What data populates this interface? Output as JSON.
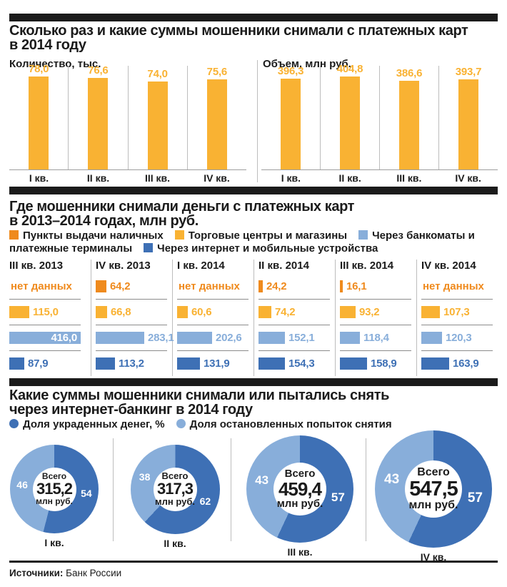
{
  "colors": {
    "yellow": "#F9B233",
    "orange": "#EF8A1D",
    "light_blue": "#88AEDA",
    "dark_blue": "#3E70B5",
    "bar_black": "#1b1b1b"
  },
  "sections": {
    "s1": {
      "title_lines": [
        "Сколько раз и какие суммы мошенники снимали с платежных карт",
        "в 2014 году"
      ]
    },
    "s2": {
      "title_lines": [
        "Где мошенники снимали деньги с платежных карт",
        "в 2013–2014 годах, млн руб."
      ]
    },
    "s3": {
      "title_lines": [
        "Какие суммы мошенники снимали или пытались снять",
        "через интернет-банкинг в 2014 году"
      ]
    }
  },
  "footer": {
    "label": "Источники:",
    "source": "Банк России"
  },
  "chart_data": [
    {
      "type": "bar",
      "title": "Количество, тыс.",
      "categories": [
        "I кв.",
        "II кв.",
        "III кв.",
        "IV кв."
      ],
      "values": [
        78.0,
        76.6,
        74.0,
        75.6
      ],
      "value_labels": [
        "78,0",
        "76,6",
        "74,0",
        "75,6"
      ],
      "bar_color": "#F9B233",
      "ylim": [
        0,
        78
      ]
    },
    {
      "type": "bar",
      "title": "Объем, млн руб.",
      "categories": [
        "I кв.",
        "II кв.",
        "III кв.",
        "IV кв."
      ],
      "values": [
        396.3,
        404.8,
        386.6,
        393.7
      ],
      "value_labels": [
        "396,3",
        "404,8",
        "386,6",
        "393,7"
      ],
      "bar_color": "#F9B233",
      "ylim": [
        0,
        404.8
      ]
    },
    {
      "type": "bar",
      "orientation": "horizontal",
      "title": "Где мошенники снимали деньги с платежных карт в 2013–2014 годах, млн руб.",
      "no_data_label": "нет данных",
      "categories": [
        "III кв. 2013",
        "IV кв. 2013",
        "I кв. 2014",
        "II кв. 2014",
        "III кв. 2014",
        "IV кв. 2014"
      ],
      "xlim": [
        0,
        416
      ],
      "series": [
        {
          "name": "Пункты выдачи наличных",
          "color": "#EF8A1D",
          "values": [
            null,
            64.2,
            null,
            24.2,
            16.1,
            null
          ],
          "value_labels": [
            null,
            "64,2",
            null,
            "24,2",
            "16,1",
            null
          ]
        },
        {
          "name": "Торговые центры и магазины",
          "color": "#F9B233",
          "values": [
            115.0,
            66.8,
            60.6,
            74.2,
            93.2,
            107.3
          ],
          "value_labels": [
            "115,0",
            "66,8",
            "60,6",
            "74,2",
            "93,2",
            "107,3"
          ]
        },
        {
          "name": "Через банкоматы и платежные терминалы",
          "color": "#88AEDA",
          "values": [
            416.0,
            283.1,
            202.6,
            152.1,
            118.4,
            120.3
          ],
          "value_labels": [
            "416,0",
            "283,1",
            "202,6",
            "152,1",
            "118,4",
            "120,3"
          ]
        },
        {
          "name": "Через интернет и мобильные устройства",
          "color": "#3E70B5",
          "values": [
            87.9,
            113.2,
            131.9,
            154.3,
            158.9,
            163.9
          ],
          "value_labels": [
            "87,9",
            "113,2",
            "131,9",
            "154,3",
            "158,9",
            "163,9"
          ]
        }
      ]
    },
    {
      "type": "pie",
      "title": "Какие суммы мошенники снимали или пытались снять через интернет-банкинг в 2014 году",
      "legend": [
        "Доля украденных денег, %",
        "Доля остановленных попыток снятия"
      ],
      "legend_colors": [
        "#3E70B5",
        "#88AEDA"
      ],
      "center_label": "Всего",
      "unit_label": "млн руб.",
      "donuts": [
        {
          "category": "I кв.",
          "total": 315.2,
          "total_label": "315,2",
          "stolen_pct": 54,
          "stopped_pct": 46
        },
        {
          "category": "II кв.",
          "total": 317.3,
          "total_label": "317,3",
          "stolen_pct": 62,
          "stopped_pct": 38
        },
        {
          "category": "III кв.",
          "total": 459.4,
          "total_label": "459,4",
          "stolen_pct": 57,
          "stopped_pct": 43
        },
        {
          "category": "IV кв.",
          "total": 547.5,
          "total_label": "547,5",
          "stolen_pct": 57,
          "stopped_pct": 43
        }
      ]
    }
  ]
}
